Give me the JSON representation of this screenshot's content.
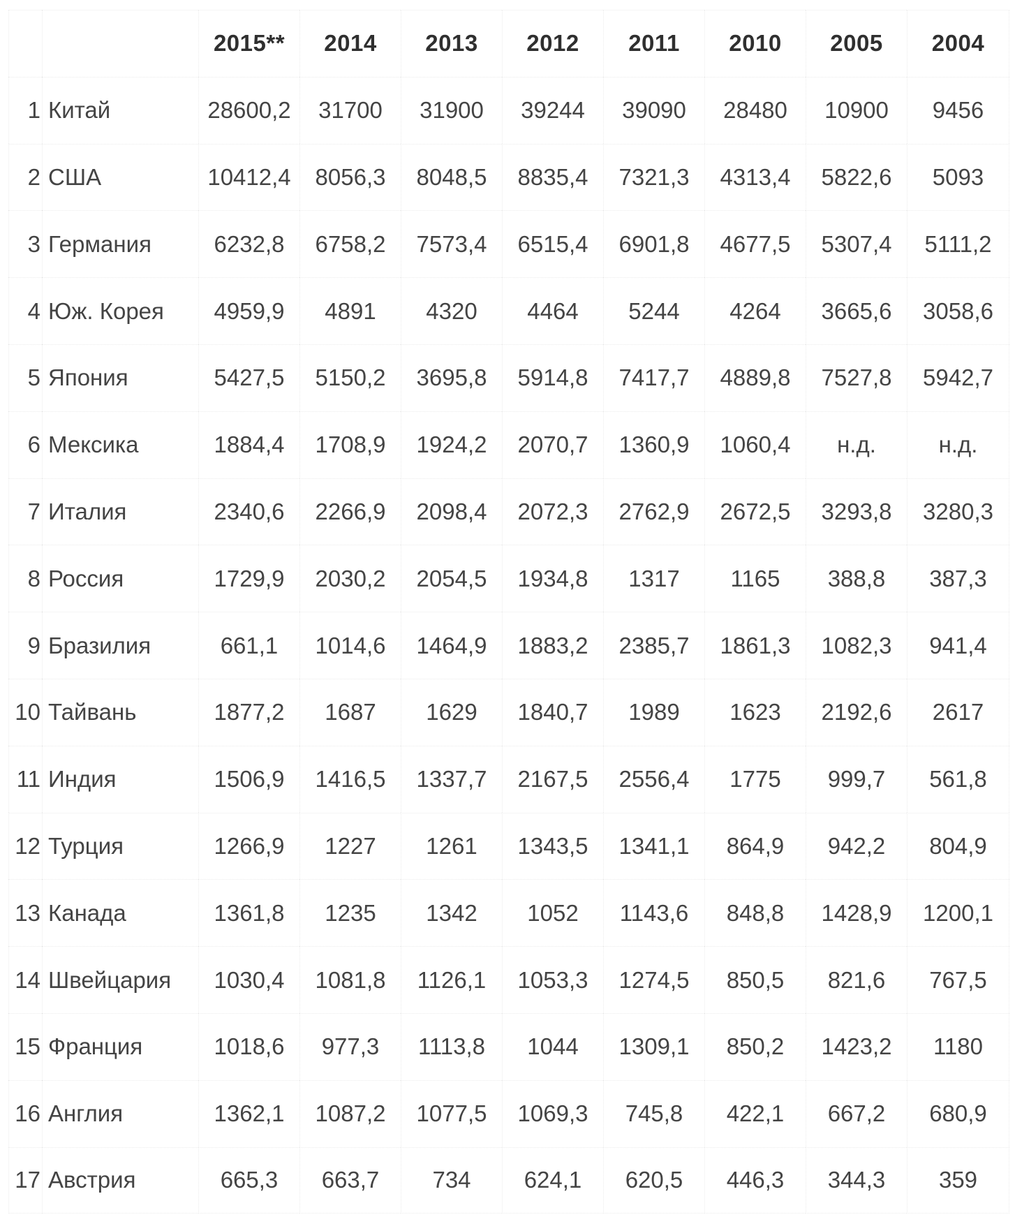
{
  "table": {
    "columns": [
      "2015**",
      "2014",
      "2013",
      "2012",
      "2011",
      "2010",
      "2005",
      "2004"
    ],
    "rows": [
      {
        "rank": "1",
        "country": "Китай",
        "values": [
          "28600,2",
          "31700",
          "31900",
          "39244",
          "39090",
          "28480",
          "10900",
          "9456"
        ]
      },
      {
        "rank": "2",
        "country": "США",
        "values": [
          "10412,4",
          "8056,3",
          "8048,5",
          "8835,4",
          "7321,3",
          "4313,4",
          "5822,6",
          "5093"
        ]
      },
      {
        "rank": "3",
        "country": "Германия",
        "values": [
          "6232,8",
          "6758,2",
          "7573,4",
          "6515,4",
          "6901,8",
          "4677,5",
          "5307,4",
          "5111,2"
        ]
      },
      {
        "rank": "4",
        "country": "Юж. Корея",
        "values": [
          "4959,9",
          "4891",
          "4320",
          "4464",
          "5244",
          "4264",
          "3665,6",
          "3058,6"
        ]
      },
      {
        "rank": "5",
        "country": "Япония",
        "values": [
          "5427,5",
          "5150,2",
          "3695,8",
          "5914,8",
          "7417,7",
          "4889,8",
          "7527,8",
          "5942,7"
        ]
      },
      {
        "rank": "6",
        "country": "Мексика",
        "values": [
          "1884,4",
          "1708,9",
          "1924,2",
          "2070,7",
          "1360,9",
          "1060,4",
          "н.д.",
          "н.д."
        ]
      },
      {
        "rank": "7",
        "country": "Италия",
        "values": [
          "2340,6",
          "2266,9",
          "2098,4",
          "2072,3",
          "2762,9",
          "2672,5",
          "3293,8",
          "3280,3"
        ]
      },
      {
        "rank": "8",
        "country": "Россия",
        "values": [
          "1729,9",
          "2030,2",
          "2054,5",
          "1934,8",
          "1317",
          "1165",
          "388,8",
          "387,3"
        ]
      },
      {
        "rank": "9",
        "country": "Бразилия",
        "values": [
          "661,1",
          "1014,6",
          "1464,9",
          "1883,2",
          "2385,7",
          "1861,3",
          "1082,3",
          "941,4"
        ]
      },
      {
        "rank": "10",
        "country": "Тайвань",
        "values": [
          "1877,2",
          "1687",
          "1629",
          "1840,7",
          "1989",
          "1623",
          "2192,6",
          "2617"
        ]
      },
      {
        "rank": "11",
        "country": "Индия",
        "values": [
          "1506,9",
          "1416,5",
          "1337,7",
          "2167,5",
          "2556,4",
          "1775",
          "999,7",
          "561,8"
        ]
      },
      {
        "rank": "12",
        "country": "Турция",
        "values": [
          "1266,9",
          "1227",
          "1261",
          "1343,5",
          "1341,1",
          "864,9",
          "942,2",
          "804,9"
        ]
      },
      {
        "rank": "13",
        "country": "Канада",
        "values": [
          "1361,8",
          "1235",
          "1342",
          "1052",
          "1143,6",
          "848,8",
          "1428,9",
          "1200,1"
        ]
      },
      {
        "rank": "14",
        "country": "Швейцария",
        "values": [
          "1030,4",
          "1081,8",
          "1126,1",
          "1053,3",
          "1274,5",
          "850,5",
          "821,6",
          "767,5"
        ]
      },
      {
        "rank": "15",
        "country": "Франция",
        "values": [
          "1018,6",
          "977,3",
          "1113,8",
          "1044",
          "1309,1",
          "850,2",
          "1423,2",
          "1180"
        ]
      },
      {
        "rank": "16",
        "country": "Англия",
        "values": [
          "1362,1",
          "1087,2",
          "1077,5",
          "1069,3",
          "745,8",
          "422,1",
          "667,2",
          "680,9"
        ]
      },
      {
        "rank": "17",
        "country": "Австрия",
        "values": [
          "665,3",
          "663,7",
          "734",
          "624,1",
          "620,5",
          "446,3",
          "344,3",
          "359"
        ]
      }
    ]
  }
}
